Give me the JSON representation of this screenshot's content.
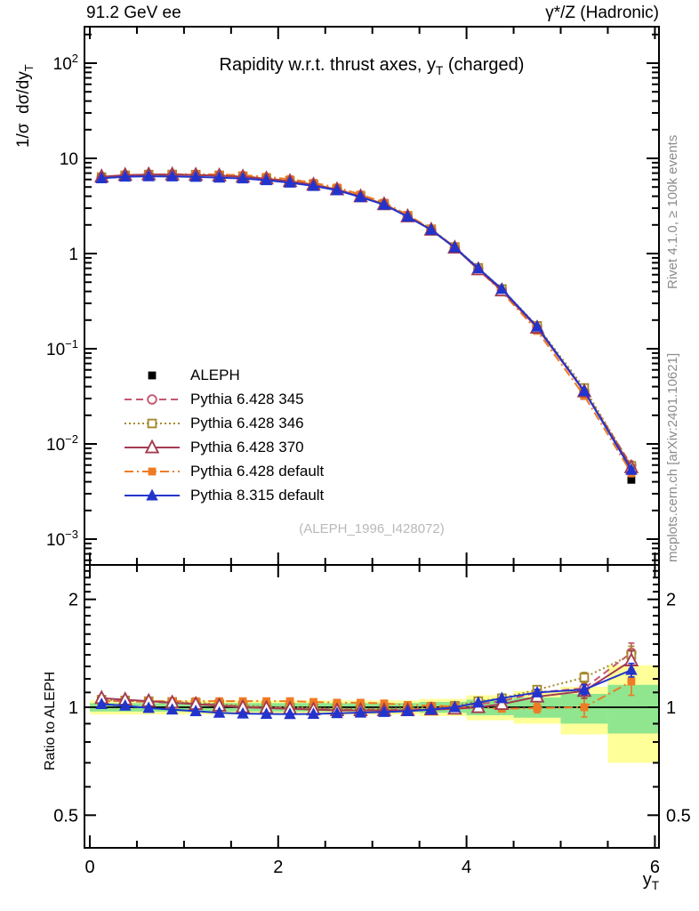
{
  "header": {
    "left": "91.2 GeV ee",
    "right": "γ*/Z (Hadronic)"
  },
  "title": {
    "pre": "Rapidity w.r.t. thrust axes, y",
    "sub": "T",
    "post": " (charged)"
  },
  "main_ylabel": {
    "pre": "1/σ  dσ/dy",
    "sub": "T"
  },
  "ratio_ylabel": "Ratio to ALEPH",
  "xlabel": {
    "pre": "y",
    "sub": "T"
  },
  "watermark": "(ALEPH_1996_I428072)",
  "side_notes": {
    "top": "Rivet 4.1.0, ≥ 100k events",
    "bottom": "mcplots.cern.ch [arXiv:2401.10621]"
  },
  "legend": [
    {
      "label": "ALEPH"
    },
    {
      "label": "Pythia 6.428 345"
    },
    {
      "label": "Pythia 6.428 346"
    },
    {
      "label": "Pythia 6.428 370"
    },
    {
      "label": "Pythia 6.428 default"
    },
    {
      "label": "Pythia 8.315 default"
    }
  ],
  "colors": {
    "frame": "#000000",
    "band_yellow": "#ffff99",
    "band_green": "#8fe68f",
    "side_text": "#8c8c8c",
    "watermark": "#b9b9b9",
    "aleph": "#000000",
    "pythia6_345": "#c6566e",
    "pythia6_346": "#a5892c",
    "pythia6_370": "#a33b51",
    "pythia6_default": "#ef7b24",
    "pythia8_default": "#2334cc"
  },
  "chart_data": {
    "type": "line",
    "title": "Rapidity w.r.t. thrust axes, y_T (charged)",
    "xlabel": "y_T",
    "ylabel": "1/σ dσ/dy_T",
    "xlim": [
      -0.06,
      6.05
    ],
    "xticks": [
      {
        "v": 0,
        "t": "0"
      },
      {
        "v": 2,
        "t": "2"
      },
      {
        "v": 4,
        "t": "4"
      },
      {
        "v": 6,
        "t": "6"
      }
    ],
    "bin_edges": [
      0,
      0.25,
      0.5,
      0.75,
      1.0,
      1.25,
      1.5,
      1.75,
      2.0,
      2.25,
      2.5,
      2.75,
      3.0,
      3.25,
      3.5,
      3.75,
      4.0,
      4.25,
      4.5,
      5.0,
      5.5,
      6.0
    ],
    "x": [
      0.125,
      0.375,
      0.625,
      0.875,
      1.125,
      1.375,
      1.625,
      1.875,
      2.125,
      2.375,
      2.625,
      2.875,
      3.125,
      3.375,
      3.625,
      3.875,
      4.125,
      4.375,
      4.75,
      5.25,
      5.75
    ],
    "main_panel": {
      "yscale": "log",
      "ylim": [
        0.00054,
        240
      ],
      "yticks": [
        {
          "v": 100,
          "b": "10",
          "e": "2"
        },
        {
          "v": 10,
          "b": "10",
          "e": ""
        },
        {
          "v": 1,
          "b": "1",
          "e": ""
        },
        {
          "v": 0.1,
          "b": "10",
          "e": "−1"
        },
        {
          "v": 0.01,
          "b": "10",
          "e": "−2"
        },
        {
          "v": 0.001,
          "b": "10",
          "e": "−3"
        }
      ]
    },
    "reference": {
      "name": "ALEPH",
      "marker": "square-filled",
      "color": "#000000",
      "values": [
        6.05,
        6.35,
        6.5,
        6.55,
        6.55,
        6.5,
        6.4,
        6.15,
        5.8,
        5.35,
        4.8,
        4.05,
        3.35,
        2.5,
        1.8,
        1.16,
        0.68,
        0.4,
        0.155,
        0.032,
        0.0042
      ]
    },
    "series": [
      {
        "name": "Pythia 6.428 345",
        "color": "#c6566e",
        "line": "dash",
        "marker": "circle-open",
        "ratio": [
          1.045,
          1.04,
          1.035,
          1.03,
          1.025,
          1.015,
          1.005,
          1.0,
          0.995,
          0.99,
          0.985,
          0.985,
          0.985,
          0.985,
          0.99,
          1.0,
          1.02,
          1.04,
          1.1,
          1.13,
          1.42
        ],
        "ratio_err": [
          0,
          0,
          0,
          0,
          0,
          0,
          0,
          0,
          0,
          0,
          0,
          0,
          0,
          0,
          0,
          0,
          0,
          0,
          0.025,
          0.05,
          0.09
        ]
      },
      {
        "name": "Pythia 6.428 346",
        "color": "#a5892c",
        "line": "dot",
        "marker": "square-open",
        "ratio": [
          1.05,
          1.045,
          1.04,
          1.035,
          1.03,
          1.02,
          1.01,
          1.005,
          1.0,
          0.995,
          0.99,
          0.99,
          0.99,
          0.995,
          1.0,
          1.01,
          1.04,
          1.06,
          1.12,
          1.21,
          1.4
        ],
        "ratio_err": [
          0,
          0,
          0,
          0,
          0,
          0,
          0,
          0,
          0,
          0,
          0,
          0,
          0,
          0,
          0,
          0,
          0,
          0,
          0.02,
          0.04,
          0.08
        ]
      },
      {
        "name": "Pythia 6.428 default",
        "color": "#ef7b24",
        "line": "dashdot",
        "marker": "square-filled",
        "ratio": [
          1.04,
          1.04,
          1.04,
          1.04,
          1.04,
          1.04,
          1.04,
          1.04,
          1.04,
          1.035,
          1.03,
          1.03,
          1.025,
          1.015,
          1.01,
          1.005,
          1.0,
          0.99,
          0.995,
          1.0,
          1.18
        ],
        "ratio_err": [
          0,
          0,
          0,
          0,
          0,
          0,
          0,
          0,
          0,
          0,
          0,
          0,
          0,
          0,
          0,
          0,
          0,
          0,
          0.03,
          0.06,
          0.1
        ]
      },
      {
        "name": "Pythia 6.428 370",
        "color": "#a33b51",
        "line": "solid",
        "marker": "triangle-open",
        "ratio": [
          1.06,
          1.05,
          1.04,
          1.03,
          1.02,
          1.01,
          1.0,
          0.995,
          0.99,
          0.985,
          0.98,
          0.98,
          0.98,
          0.98,
          0.985,
          0.99,
          1.0,
          1.02,
          1.07,
          1.11,
          1.35
        ],
        "ratio_err": [
          0,
          0,
          0,
          0,
          0,
          0,
          0,
          0,
          0,
          0,
          0,
          0,
          0,
          0,
          0,
          0,
          0,
          0,
          0.025,
          0.05,
          0.09
        ]
      },
      {
        "name": "Pythia 8.315 default",
        "color": "#2334cc",
        "line": "solid",
        "marker": "triangle-filled",
        "ratio": [
          1.02,
          1.01,
          0.995,
          0.985,
          0.975,
          0.965,
          0.96,
          0.958,
          0.957,
          0.958,
          0.962,
          0.966,
          0.97,
          0.975,
          0.985,
          1.0,
          1.03,
          1.06,
          1.1,
          1.12,
          1.27
        ],
        "ratio_err": [
          0,
          0,
          0,
          0,
          0,
          0,
          0,
          0,
          0,
          0,
          0,
          0,
          0,
          0,
          0,
          0,
          0,
          0,
          0.02,
          0.035,
          0.055
        ]
      }
    ],
    "ratio_panel": {
      "yscale": "log",
      "ylim": [
        0.4,
        2.52
      ],
      "yticks": [
        {
          "v": 2,
          "t": "2"
        },
        {
          "v": 1,
          "t": "1"
        },
        {
          "v": 0.5,
          "t": "0.5"
        }
      ],
      "reference_line": 1.0,
      "bands": {
        "yellow": [
          {
            "x0": 0,
            "x1": 3.5,
            "lo": 0.955,
            "hi": 1.045
          },
          {
            "x0": 3.5,
            "x1": 4.0,
            "lo": 0.945,
            "hi": 1.055
          },
          {
            "x0": 4.0,
            "x1": 4.5,
            "lo": 0.92,
            "hi": 1.08
          },
          {
            "x0": 4.5,
            "x1": 5.0,
            "lo": 0.9,
            "hi": 1.11
          },
          {
            "x0": 5.0,
            "x1": 5.5,
            "lo": 0.84,
            "hi": 1.14
          },
          {
            "x0": 5.5,
            "x1": 6.04,
            "lo": 0.7,
            "hi": 1.31
          }
        ],
        "green": [
          {
            "x0": 0,
            "x1": 3.5,
            "lo": 0.973,
            "hi": 1.027
          },
          {
            "x0": 3.5,
            "x1": 4.0,
            "lo": 0.965,
            "hi": 1.035
          },
          {
            "x0": 4.0,
            "x1": 4.5,
            "lo": 0.95,
            "hi": 1.05
          },
          {
            "x0": 4.5,
            "x1": 5.0,
            "lo": 0.935,
            "hi": 1.065
          },
          {
            "x0": 5.0,
            "x1": 5.5,
            "lo": 0.9,
            "hi": 1.09
          },
          {
            "x0": 5.5,
            "x1": 6.04,
            "lo": 0.845,
            "hi": 1.155
          }
        ]
      }
    }
  }
}
